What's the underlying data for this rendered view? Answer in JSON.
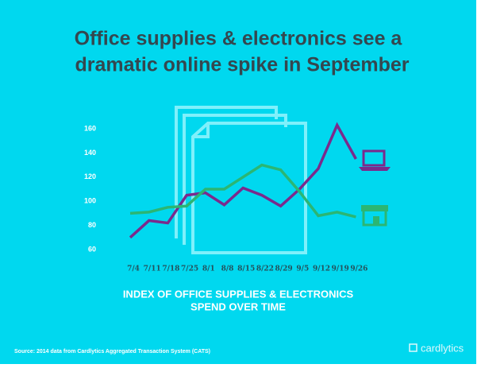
{
  "chart_data": {
    "type": "line",
    "title": [
      "Office supplies & electronics see a",
      "dramatic online spike in September"
    ],
    "subtitle": [
      "INDEX OF OFFICE SUPPLIES & ELECTRONICS",
      "SPEND OVER TIME"
    ],
    "source": "Source: 2014 data from Cardlytics Aggregated Transaction System (CATS)",
    "brand": "cardlytics",
    "categories": [
      "7/4",
      "7/11",
      "7/18",
      "7/25",
      "8/1",
      "8/8",
      "8/15",
      "8/22",
      "8/29",
      "9/5",
      "9/12",
      "9/19",
      "9/26"
    ],
    "series": [
      {
        "color": "#7b2a8c",
        "values": [
          70,
          84,
          82,
          105,
          107,
          97,
          111,
          105,
          96,
          110,
          127,
          163,
          135
        ]
      },
      {
        "color": "#2bb673",
        "values": [
          90,
          91,
          95,
          96,
          110,
          110,
          120,
          130,
          126,
          108,
          88,
          91,
          87
        ]
      }
    ],
    "ylim": [
      55,
      170
    ],
    "yticks": [
      60,
      80,
      100,
      120,
      140,
      160
    ],
    "grid": false
  }
}
